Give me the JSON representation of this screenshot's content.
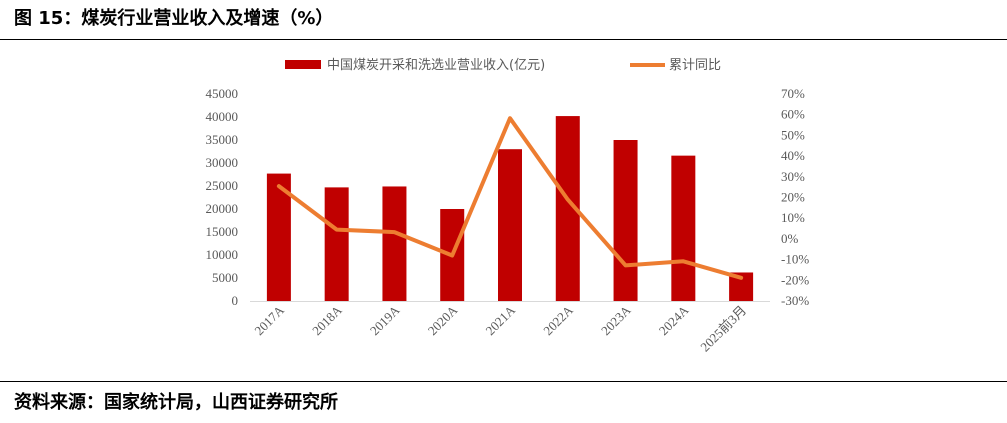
{
  "header": {
    "title": "图 15：煤炭行业营业收入及增速（%）"
  },
  "footer": {
    "source": "资料来源：国家统计局，山西证券研究所"
  },
  "chart_data": {
    "type": "bar+line",
    "categories": [
      "2017A",
      "2018A",
      "2019A",
      "2020A",
      "2021A",
      "2022A",
      "2023A",
      "2024A",
      "2025前3月"
    ],
    "series": [
      {
        "name": "中国煤炭开采和洗选业营业收入(亿元)",
        "type": "bar",
        "axis": "left",
        "color": "#C00000",
        "values": [
          27700,
          24700,
          24900,
          20000,
          33000,
          40200,
          35000,
          31600,
          6200
        ]
      },
      {
        "name": "累计同比",
        "type": "line",
        "axis": "right",
        "color": "#ED7D31",
        "values": [
          25.5,
          4.5,
          3.3,
          -8.0,
          58.3,
          19.0,
          -12.8,
          -10.8,
          -18.8
        ]
      }
    ],
    "y_left": {
      "ylim": [
        0,
        45000
      ],
      "ticks": [
        "0",
        "5000",
        "10000",
        "15000",
        "20000",
        "25000",
        "30000",
        "35000",
        "40000",
        "45000"
      ]
    },
    "y_right": {
      "ylim": [
        -30,
        70
      ],
      "ticks": [
        "-30%",
        "-20%",
        "-10%",
        "0%",
        "10%",
        "20%",
        "30%",
        "40%",
        "50%",
        "60%",
        "70%"
      ]
    },
    "grid": false,
    "legend_position": "top-center"
  }
}
